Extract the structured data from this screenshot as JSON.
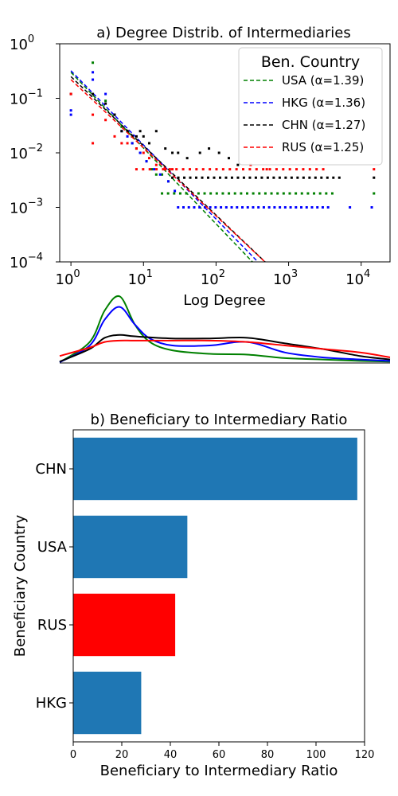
{
  "chart_data": [
    {
      "type": "scatter",
      "title": "a) Degree Distrib. of Intermediaries",
      "xlabel": "Log Degree",
      "ylabel": "",
      "x_scale": "log",
      "y_scale": "log",
      "xlim": [
        0.7,
        25000
      ],
      "ylim": [
        0.0001,
        1
      ],
      "x_ticks": [
        {
          "value": 1,
          "base": "10",
          "exp": "0"
        },
        {
          "value": 10,
          "base": "10",
          "exp": "1"
        },
        {
          "value": 100,
          "base": "10",
          "exp": "2"
        },
        {
          "value": 1000,
          "base": "10",
          "exp": "3"
        },
        {
          "value": 10000,
          "base": "10",
          "exp": "4"
        }
      ],
      "y_ticks": [
        {
          "value": 1,
          "base": "10",
          "exp": "0"
        },
        {
          "value": 0.1,
          "base": "10",
          "exp": "−1"
        },
        {
          "value": 0.01,
          "base": "10",
          "exp": "−2"
        },
        {
          "value": 0.001,
          "base": "10",
          "exp": "−3"
        },
        {
          "value": 0.0001,
          "base": "10",
          "exp": "−4"
        }
      ],
      "legend": {
        "title": "Ben. Country",
        "position": "upper-right",
        "entries": [
          "USA (α=1.39)",
          "HKG (α=1.36)",
          "CHN (α=1.27)",
          "RUS (α=1.25)"
        ]
      },
      "series": [
        {
          "color": "#008000",
          "alpha": 1.39,
          "fit_intercept": 0.3,
          "points": [
            [
              2,
              0.45
            ],
            [
              3,
              0.09
            ],
            [
              4,
              0.05
            ],
            [
              5,
              0.03
            ],
            [
              6,
              0.025
            ],
            [
              7,
              0.015
            ],
            [
              8,
              0.012
            ],
            [
              9,
              0.01
            ],
            [
              11,
              0.007
            ],
            [
              13,
              0.005
            ],
            [
              15,
              0.004
            ],
            [
              18,
              0.004
            ],
            [
              22,
              0.003
            ]
          ],
          "floor": {
            "y": 0.0018,
            "x_from": 18,
            "x_to": 4000,
            "extra_x": [
              15000
            ]
          }
        },
        {
          "color": "#0000ff",
          "alpha": 1.36,
          "fit_intercept": 0.32,
          "points": [
            [
              1,
              0.06
            ],
            [
              1,
              0.05
            ],
            [
              2,
              0.3
            ],
            [
              2,
              0.22
            ],
            [
              3,
              0.12
            ],
            [
              4,
              0.05
            ],
            [
              5,
              0.025
            ],
            [
              6,
              0.02
            ],
            [
              7,
              0.015
            ],
            [
              9,
              0.01
            ],
            [
              11,
              0.007
            ],
            [
              14,
              0.005
            ],
            [
              17,
              0.004
            ],
            [
              22,
              0.003
            ],
            [
              27,
              0.002
            ]
          ],
          "floor": {
            "y": 0.001,
            "x_from": 30,
            "x_to": 3500,
            "extra_x": [
              7000,
              14000
            ]
          }
        },
        {
          "color": "#000000",
          "alpha": 1.27,
          "fit_intercept": 0.25,
          "points": [
            [
              1,
              0.12
            ],
            [
              2,
              0.12
            ],
            [
              3,
              0.08
            ],
            [
              4,
              0.05
            ],
            [
              5,
              0.025
            ],
            [
              6,
              0.025
            ],
            [
              7,
              0.02
            ],
            [
              8,
              0.02
            ],
            [
              9,
              0.025
            ],
            [
              10,
              0.02
            ],
            [
              12,
              0.015
            ],
            [
              15,
              0.025
            ],
            [
              20,
              0.012
            ],
            [
              25,
              0.01
            ],
            [
              30,
              0.01
            ],
            [
              40,
              0.008
            ],
            [
              60,
              0.01
            ],
            [
              80,
              0.012
            ],
            [
              110,
              0.01
            ],
            [
              150,
              0.008
            ],
            [
              200,
              0.006
            ]
          ],
          "floor": {
            "y": 0.0035,
            "x_from": 25,
            "x_to": 5000,
            "extra_x": [
              15000
            ]
          }
        },
        {
          "color": "#ff0000",
          "alpha": 1.25,
          "fit_intercept": 0.22,
          "points": [
            [
              1,
              0.12
            ],
            [
              2,
              0.05
            ],
            [
              2,
              0.015
            ],
            [
              3,
              0.04
            ],
            [
              4,
              0.02
            ],
            [
              5,
              0.015
            ],
            [
              6,
              0.015
            ],
            [
              8,
              0.012
            ],
            [
              10,
              0.01
            ],
            [
              12,
              0.008
            ],
            [
              15,
              0.006
            ],
            [
              20,
              0.005
            ],
            [
              25,
              0.005
            ],
            [
              300,
              0.006
            ],
            [
              500,
              0.005
            ]
          ],
          "floor": {
            "y": 0.005,
            "x_from": 8,
            "x_to": 3000,
            "extra_x": [
              15000
            ]
          }
        }
      ]
    },
    {
      "type": "area",
      "subtype": "density",
      "xlim": [
        0,
        4.4
      ],
      "series": [
        {
          "color": "#008000",
          "x": [
            0,
            0.4,
            0.6,
            0.8,
            1.0,
            1.2,
            1.5,
            2.0,
            2.5,
            3.0,
            3.5,
            4.0,
            4.4
          ],
          "y": [
            0.01,
            0.3,
            0.75,
            0.95,
            0.55,
            0.3,
            0.18,
            0.13,
            0.12,
            0.07,
            0.05,
            0.03,
            0.02
          ]
        },
        {
          "color": "#0000ff",
          "x": [
            0,
            0.4,
            0.6,
            0.8,
            1.0,
            1.2,
            1.5,
            2.0,
            2.5,
            3.0,
            3.5,
            4.0,
            4.4
          ],
          "y": [
            0.01,
            0.25,
            0.62,
            0.8,
            0.55,
            0.35,
            0.25,
            0.25,
            0.3,
            0.15,
            0.08,
            0.05,
            0.03
          ]
        },
        {
          "color": "#000000",
          "x": [
            0,
            0.4,
            0.6,
            0.8,
            1.0,
            1.5,
            2.0,
            2.5,
            3.0,
            3.5,
            4.0,
            4.4
          ],
          "y": [
            0.02,
            0.2,
            0.36,
            0.4,
            0.38,
            0.35,
            0.35,
            0.36,
            0.28,
            0.2,
            0.1,
            0.05
          ]
        },
        {
          "color": "#ff0000",
          "x": [
            0,
            0.4,
            0.6,
            0.8,
            1.0,
            1.5,
            2.0,
            2.5,
            3.0,
            3.5,
            4.0,
            4.4
          ],
          "y": [
            0.1,
            0.22,
            0.3,
            0.32,
            0.32,
            0.32,
            0.32,
            0.3,
            0.25,
            0.2,
            0.15,
            0.08
          ]
        }
      ]
    },
    {
      "type": "bar",
      "orientation": "horizontal",
      "title": "b) Beneficiary to Intermediary Ratio",
      "xlabel": "Beneficiary to Intermediary Ratio",
      "ylabel": "Beneficiary Country",
      "categories": [
        "CHN",
        "USA",
        "RUS",
        "HKG"
      ],
      "values": [
        117,
        47,
        42,
        28
      ],
      "colors": [
        "#1f77b4",
        "#1f77b4",
        "#ff0000",
        "#1f77b4"
      ],
      "xlim": [
        0,
        120
      ],
      "x_ticks": [
        "0",
        "20",
        "40",
        "60",
        "80",
        "100",
        "120"
      ]
    }
  ]
}
